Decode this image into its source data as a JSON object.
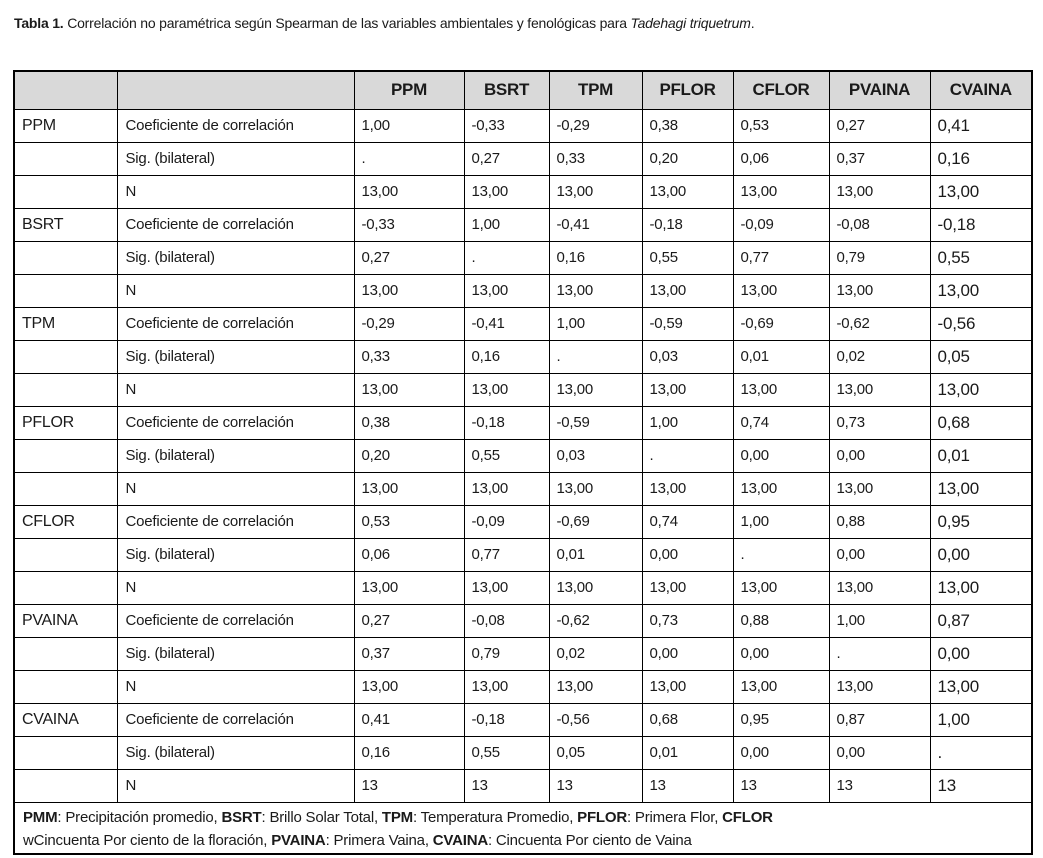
{
  "caption": {
    "label": "Tabla 1.",
    "body": " Correlación no paramétrica según Spearman de las variables ambientales y fenológicas para ",
    "species": "Tadehagi triquetrum",
    "suffix": "."
  },
  "colors": {
    "header_bg": "#d9d9d9",
    "border": "#000000",
    "text": "#1a1a1a"
  },
  "table": {
    "col_headers": [
      "",
      "",
      "PPM",
      "BSRT",
      "TPM",
      "PFLOR",
      "CFLOR",
      "PVAINA",
      "CVAINA"
    ],
    "row_groups": [
      {
        "variable": "PPM",
        "rows": [
          {
            "stat": "Coeficiente de correlación",
            "values": [
              "1,00",
              "-0,33",
              "-0,29",
              "0,38",
              "0,53",
              "0,27",
              "0,41"
            ]
          },
          {
            "stat": "Sig. (bilateral)",
            "values": [
              ".",
              "0,27",
              "0,33",
              "0,20",
              "0,06",
              "0,37",
              "0,16"
            ]
          },
          {
            "stat": "N",
            "values": [
              "13,00",
              "13,00",
              "13,00",
              "13,00",
              "13,00",
              "13,00",
              "13,00"
            ]
          }
        ]
      },
      {
        "variable": "BSRT",
        "rows": [
          {
            "stat": "Coeficiente de correlación",
            "values": [
              "-0,33",
              "1,00",
              "-0,41",
              "-0,18",
              "-0,09",
              "-0,08",
              "-0,18"
            ]
          },
          {
            "stat": "Sig. (bilateral)",
            "values": [
              "0,27",
              ".",
              "0,16",
              "0,55",
              "0,77",
              "0,79",
              "0,55"
            ]
          },
          {
            "stat": "N",
            "values": [
              "13,00",
              "13,00",
              "13,00",
              "13,00",
              "13,00",
              "13,00",
              "13,00"
            ]
          }
        ]
      },
      {
        "variable": "TPM",
        "rows": [
          {
            "stat": "Coeficiente de correlación",
            "values": [
              "-0,29",
              "-0,41",
              "1,00",
              "-0,59",
              "-0,69",
              "-0,62",
              "-0,56"
            ]
          },
          {
            "stat": "Sig. (bilateral)",
            "values": [
              "0,33",
              "0,16",
              ".",
              "0,03",
              "0,01",
              "0,02",
              "0,05"
            ]
          },
          {
            "stat": "N",
            "values": [
              "13,00",
              "13,00",
              "13,00",
              "13,00",
              "13,00",
              "13,00",
              "13,00"
            ]
          }
        ]
      },
      {
        "variable": "PFLOR",
        "rows": [
          {
            "stat": "Coeficiente de correlación",
            "values": [
              "0,38",
              "-0,18",
              "-0,59",
              "1,00",
              "0,74",
              "0,73",
              "0,68"
            ]
          },
          {
            "stat": "Sig. (bilateral)",
            "values": [
              "0,20",
              "0,55",
              "0,03",
              ".",
              "0,00",
              "0,00",
              "0,01"
            ]
          },
          {
            "stat": "N",
            "values": [
              "13,00",
              "13,00",
              "13,00",
              "13,00",
              "13,00",
              "13,00",
              "13,00"
            ]
          }
        ]
      },
      {
        "variable": "CFLOR",
        "rows": [
          {
            "stat": "Coeficiente de correlación",
            "values": [
              "0,53",
              "-0,09",
              "-0,69",
              "0,74",
              "1,00",
              "0,88",
              "0,95"
            ]
          },
          {
            "stat": "Sig. (bilateral)",
            "values": [
              "0,06",
              "0,77",
              "0,01",
              "0,00",
              ".",
              "0,00",
              "0,00"
            ]
          },
          {
            "stat": "N",
            "values": [
              "13,00",
              "13,00",
              "13,00",
              "13,00",
              "13,00",
              "13,00",
              "13,00"
            ]
          }
        ]
      },
      {
        "variable": "PVAINA",
        "rows": [
          {
            "stat": "Coeficiente de correlación",
            "values": [
              "0,27",
              "-0,08",
              "-0,62",
              "0,73",
              "0,88",
              "1,00",
              "0,87"
            ]
          },
          {
            "stat": "Sig. (bilateral)",
            "values": [
              "0,37",
              "0,79",
              "0,02",
              "0,00",
              "0,00",
              ".",
              "0,00"
            ]
          },
          {
            "stat": "N",
            "values": [
              "13,00",
              "13,00",
              "13,00",
              "13,00",
              "13,00",
              "13,00",
              "13,00"
            ]
          }
        ]
      },
      {
        "variable": "CVAINA",
        "rows": [
          {
            "stat": "Coeficiente de correlación",
            "values": [
              "0,41",
              "-0,18",
              "-0,56",
              "0,68",
              "0,95",
              "0,87",
              "1,00"
            ]
          },
          {
            "stat": "Sig. (bilateral)",
            "values": [
              "0,16",
              "0,55",
              "0,05",
              "0,01",
              "0,00",
              "0,00",
              "."
            ]
          },
          {
            "stat": "N",
            "values": [
              "13",
              "13",
              "13",
              "13",
              "13",
              "13",
              "13"
            ]
          }
        ]
      }
    ]
  },
  "footnote": {
    "line1": [
      {
        "text": "PMM",
        "bold": true
      },
      {
        "text": ": Precipitación promedio, ",
        "bold": false
      },
      {
        "text": "BSRT",
        "bold": true
      },
      {
        "text": ": Brillo Solar Total, ",
        "bold": false
      },
      {
        "text": "TPM",
        "bold": true
      },
      {
        "text": ": Temperatura Promedio, ",
        "bold": false
      },
      {
        "text": "PFLOR",
        "bold": true
      },
      {
        "text": ": Primera Flor, ",
        "bold": false
      },
      {
        "text": "CFLOR",
        "bold": true
      }
    ],
    "line2": [
      {
        "text": "wCincuenta Por ciento de la floración, ",
        "bold": false
      },
      {
        "text": "PVAINA",
        "bold": true
      },
      {
        "text": ": Primera Vaina, ",
        "bold": false
      },
      {
        "text": "CVAINA",
        "bold": true
      },
      {
        "text": ": Cincuenta Por ciento de Vaina",
        "bold": false
      }
    ]
  }
}
